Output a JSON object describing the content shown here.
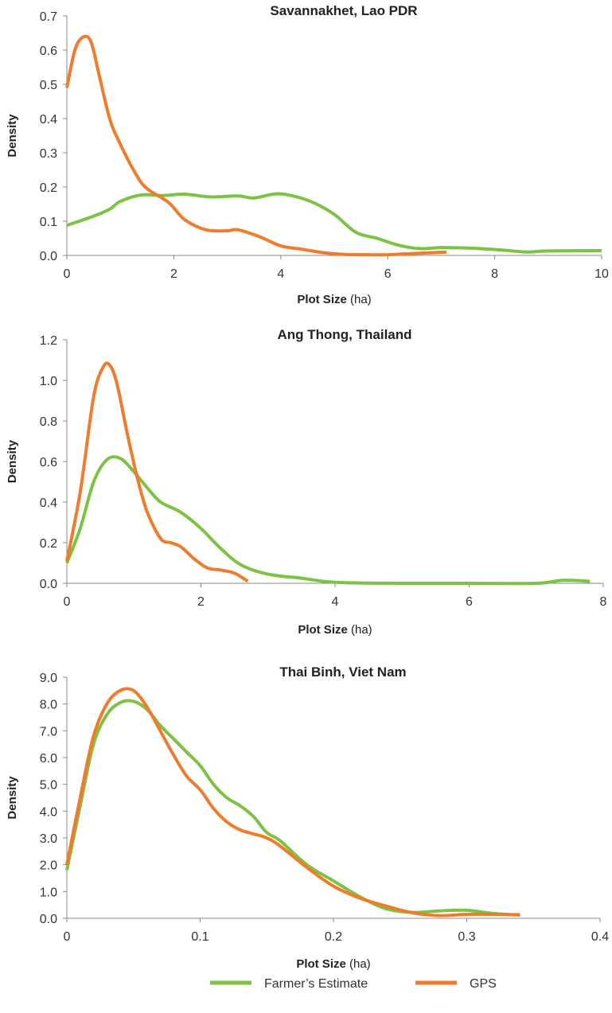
{
  "chart_data": [
    {
      "type": "line",
      "title": "Savannakhet, Lao PDR",
      "xlabel_bold": "Plot Size",
      "xlabel_unit": " (ha)",
      "ylabel": "Density",
      "xlim": [
        0,
        10
      ],
      "ylim": [
        0,
        0.7
      ],
      "xticks": [
        0,
        2,
        4,
        6,
        8,
        10
      ],
      "xtick_labels": [
        "0",
        "2",
        "4",
        "6",
        "8",
        "10"
      ],
      "yticks": [
        0,
        0.1,
        0.2,
        0.3,
        0.4,
        0.5,
        0.6,
        0.7
      ],
      "ytick_labels": [
        "0.0",
        "0.1",
        "0.2",
        "0.3",
        "0.4",
        "0.5",
        "0.6",
        "0.7"
      ],
      "series": [
        {
          "name": "Farmer's Estimate",
          "color": "#7dc243",
          "x": [
            0,
            0.5,
            0.8,
            1.0,
            1.4,
            1.8,
            2.2,
            2.7,
            3.2,
            3.5,
            3.9,
            4.2,
            4.6,
            5.0,
            5.4,
            5.8,
            6.2,
            6.6,
            7.0,
            7.6,
            8.2,
            8.6,
            9.0,
            10.0
          ],
          "y": [
            0.088,
            0.115,
            0.135,
            0.158,
            0.177,
            0.175,
            0.179,
            0.171,
            0.174,
            0.168,
            0.18,
            0.175,
            0.155,
            0.12,
            0.068,
            0.05,
            0.03,
            0.02,
            0.023,
            0.021,
            0.015,
            0.01,
            0.013,
            0.014
          ]
        },
        {
          "name": "GPS",
          "color": "#f07b2b",
          "x": [
            0,
            0.15,
            0.3,
            0.45,
            0.6,
            0.8,
            1.0,
            1.3,
            1.5,
            1.9,
            2.2,
            2.6,
            3.0,
            3.2,
            3.6,
            4.0,
            4.4,
            4.8,
            5.2,
            5.6,
            6.0,
            6.4,
            7.1
          ],
          "y": [
            0.49,
            0.6,
            0.638,
            0.625,
            0.53,
            0.4,
            0.325,
            0.235,
            0.195,
            0.155,
            0.105,
            0.075,
            0.072,
            0.075,
            0.055,
            0.028,
            0.018,
            0.008,
            0.003,
            0.002,
            0.002,
            0.005,
            0.01
          ]
        }
      ]
    },
    {
      "type": "line",
      "title": "Ang Thong, Thailand",
      "xlabel_bold": "Plot Size",
      "xlabel_unit": " (ha)",
      "ylabel": "Density",
      "xlim": [
        0,
        8
      ],
      "ylim": [
        0,
        1.2
      ],
      "xticks": [
        0,
        2,
        4,
        6,
        8
      ],
      "xtick_labels": [
        "0",
        "2",
        "4",
        "6",
        "8"
      ],
      "yticks": [
        0,
        0.2,
        0.4,
        0.6,
        0.8,
        1.0,
        1.2
      ],
      "ytick_labels": [
        "0.0",
        "0.2",
        "0.4",
        "0.6",
        "0.8",
        "1.0",
        "1.2"
      ],
      "series": [
        {
          "name": "Farmer's Estimate",
          "color": "#7dc243",
          "x": [
            0,
            0.2,
            0.4,
            0.6,
            0.8,
            1.0,
            1.2,
            1.4,
            1.7,
            2.0,
            2.3,
            2.6,
            3.0,
            3.5,
            4.0,
            5.0,
            6.0,
            7.0,
            7.4,
            7.8
          ],
          "y": [
            0.1,
            0.27,
            0.5,
            0.61,
            0.615,
            0.55,
            0.47,
            0.4,
            0.35,
            0.27,
            0.17,
            0.09,
            0.045,
            0.025,
            0.005,
            0.0,
            0.0,
            0.0,
            0.015,
            0.01
          ]
        },
        {
          "name": "GPS",
          "color": "#f07b2b",
          "x": [
            0,
            0.2,
            0.4,
            0.55,
            0.65,
            0.75,
            0.9,
            1.05,
            1.2,
            1.4,
            1.55,
            1.7,
            1.9,
            2.1,
            2.3,
            2.5,
            2.7
          ],
          "y": [
            0.11,
            0.45,
            0.92,
            1.07,
            1.07,
            0.98,
            0.74,
            0.52,
            0.35,
            0.22,
            0.2,
            0.18,
            0.12,
            0.075,
            0.065,
            0.05,
            0.01
          ]
        }
      ]
    },
    {
      "type": "line",
      "title": "Thai Binh, Viet Nam",
      "xlabel_bold": "Plot Size",
      "xlabel_unit": " (ha)",
      "ylabel": "Density",
      "xlim": [
        0,
        0.4
      ],
      "ylim": [
        0,
        9
      ],
      "xticks": [
        0,
        0.1,
        0.2,
        0.3,
        0.4
      ],
      "xtick_labels": [
        "0",
        "0.1",
        "0.2",
        "0.3",
        "0.4"
      ],
      "yticks": [
        0,
        1,
        2,
        3,
        4,
        5,
        6,
        7,
        8,
        9
      ],
      "ytick_labels": [
        "0.0",
        "1.0",
        "2.0",
        "3.0",
        "4.0",
        "5.0",
        "6.0",
        "7.0",
        "8.0",
        "9.0"
      ],
      "series": [
        {
          "name": "Farmer's Estimate",
          "color": "#7dc243",
          "x": [
            0,
            0.01,
            0.02,
            0.03,
            0.04,
            0.05,
            0.06,
            0.07,
            0.08,
            0.09,
            0.1,
            0.11,
            0.12,
            0.13,
            0.14,
            0.15,
            0.16,
            0.18,
            0.2,
            0.22,
            0.24,
            0.26,
            0.28,
            0.3,
            0.32,
            0.34
          ],
          "y": [
            1.8,
            4.2,
            6.5,
            7.6,
            8.05,
            8.1,
            7.8,
            7.2,
            6.7,
            6.2,
            5.7,
            5.0,
            4.5,
            4.2,
            3.8,
            3.2,
            2.9,
            2.0,
            1.4,
            0.8,
            0.35,
            0.22,
            0.28,
            0.3,
            0.18,
            0.12
          ]
        },
        {
          "name": "GPS",
          "color": "#f07b2b",
          "x": [
            0,
            0.01,
            0.02,
            0.03,
            0.04,
            0.05,
            0.06,
            0.07,
            0.08,
            0.09,
            0.1,
            0.11,
            0.12,
            0.13,
            0.14,
            0.15,
            0.16,
            0.18,
            0.2,
            0.22,
            0.24,
            0.26,
            0.28,
            0.3,
            0.32,
            0.34
          ],
          "y": [
            2.0,
            4.5,
            6.8,
            8.0,
            8.5,
            8.5,
            7.9,
            7.0,
            6.1,
            5.3,
            4.8,
            4.1,
            3.6,
            3.3,
            3.15,
            3.0,
            2.7,
            1.9,
            1.2,
            0.75,
            0.45,
            0.2,
            0.1,
            0.15,
            0.15,
            0.13
          ]
        }
      ]
    }
  ],
  "legend": {
    "items": [
      {
        "label": "Farmer’s Estimate",
        "color": "#7dc243"
      },
      {
        "label": "GPS",
        "color": "#f07b2b"
      }
    ]
  }
}
